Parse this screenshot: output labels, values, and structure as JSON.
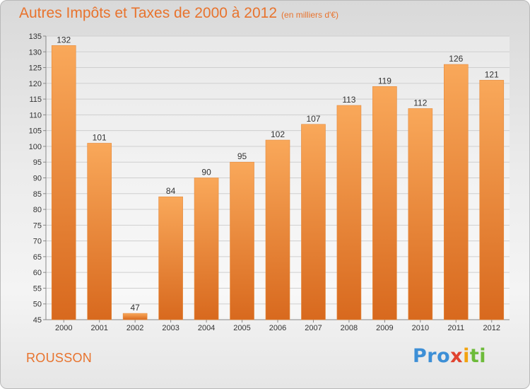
{
  "title": "Autres Impôts et Taxes de 2000 à 2012",
  "unit_label": "(en milliers d'€)",
  "city": "ROUSSON",
  "logo": {
    "text": "Proxiti",
    "parts": [
      "Pro",
      "x",
      "i",
      "ti"
    ]
  },
  "colors": {
    "accent": "#e8732d",
    "bar_top": "#f9a85a",
    "bar_bottom": "#d8691e",
    "grid": "#cfcfcf"
  },
  "chart_data": {
    "type": "bar",
    "categories": [
      "2000",
      "2001",
      "2002",
      "2003",
      "2004",
      "2005",
      "2006",
      "2007",
      "2008",
      "2009",
      "2010",
      "2011",
      "2012"
    ],
    "values": [
      132,
      101,
      47,
      84,
      90,
      95,
      102,
      107,
      113,
      119,
      112,
      126,
      121
    ],
    "ylim": [
      45,
      135
    ],
    "yticks": [
      45,
      50,
      55,
      60,
      65,
      70,
      75,
      80,
      85,
      90,
      95,
      100,
      105,
      110,
      115,
      120,
      125,
      130,
      135
    ],
    "grid": true,
    "legend": "none",
    "data_labels": true
  }
}
